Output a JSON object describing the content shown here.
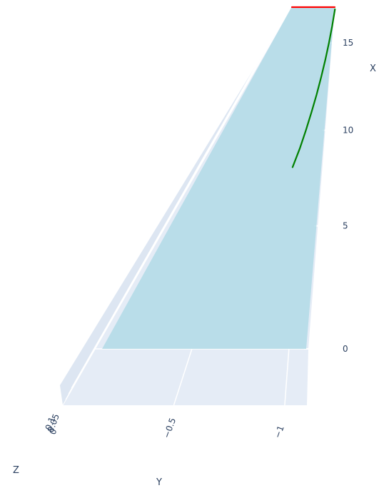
{
  "chart_data": {
    "type": "line3d",
    "title": "",
    "axes": {
      "x": {
        "label": "X",
        "ticks": [
          {
            "value": 0,
            "label": "0"
          },
          {
            "value": 5,
            "label": "5"
          },
          {
            "value": 10,
            "label": "10"
          },
          {
            "value": 15,
            "label": "15"
          }
        ],
        "range": [
          0,
          17
        ]
      },
      "y": {
        "label": "Y",
        "ticks": [
          {
            "value": -0.5,
            "label": "−0.5"
          },
          {
            "value": -1,
            "label": "−1"
          }
        ],
        "range": [
          0,
          -1.1
        ]
      },
      "z": {
        "label": "Z",
        "ticks": [
          {
            "value": 0,
            "label": "0"
          },
          {
            "value": 0.05,
            "label": "0.05"
          },
          {
            "value": 0.1,
            "label": "0.1"
          }
        ]
      }
    },
    "colors": {
      "scene_background": "#e5ecf6",
      "gridline": "#ffffff",
      "surface": "#add8e6",
      "trajectory": "#008000",
      "edge_line": "#ff0000"
    },
    "series": [
      {
        "type": "line",
        "color": "#008000",
        "x": [
          8.0,
          9.0,
          10.0,
          11.0,
          12.0,
          13.0,
          14.0,
          15.0,
          16.0,
          17.0
        ],
        "y": [
          -0.83,
          -0.865,
          -0.895,
          -0.925,
          -0.955,
          -0.985,
          -1.015,
          -1.045,
          -1.075,
          -1.105
        ]
      },
      {
        "type": "line",
        "color": "#ff0000",
        "x": [
          17.1,
          17.1
        ],
        "y": [
          -0.38,
          -1.1
        ]
      }
    ]
  }
}
